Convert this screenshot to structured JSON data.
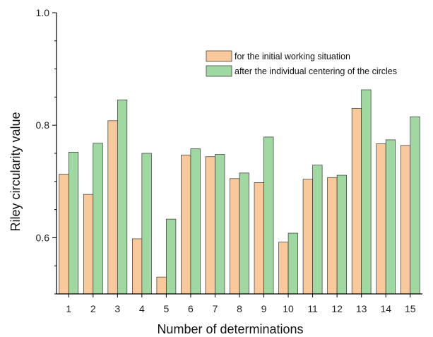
{
  "chart_data": {
    "type": "bar",
    "title": "",
    "xlabel": "Number of determinations",
    "ylabel": "Riley circularity value",
    "ylim": [
      0.5,
      1.0
    ],
    "yticks": [
      "0.6",
      "0.8",
      "1.0"
    ],
    "grid": false,
    "legend_position": "top-right",
    "categories": [
      "1",
      "2",
      "3",
      "4",
      "5",
      "6",
      "7",
      "8",
      "9",
      "10",
      "11",
      "12",
      "13",
      "14",
      "15"
    ],
    "series": [
      {
        "name": "for the initial working situation",
        "color": "#f9c99c",
        "values": [
          0.713,
          0.677,
          0.808,
          0.598,
          0.53,
          0.747,
          0.744,
          0.705,
          0.698,
          0.592,
          0.704,
          0.707,
          0.83,
          0.767,
          0.764
        ]
      },
      {
        "name": "after the individual centering of the circles",
        "color": "#9fd8a0",
        "values": [
          0.752,
          0.768,
          0.845,
          0.75,
          0.633,
          0.758,
          0.748,
          0.715,
          0.779,
          0.608,
          0.729,
          0.711,
          0.863,
          0.774,
          0.815
        ]
      }
    ]
  }
}
